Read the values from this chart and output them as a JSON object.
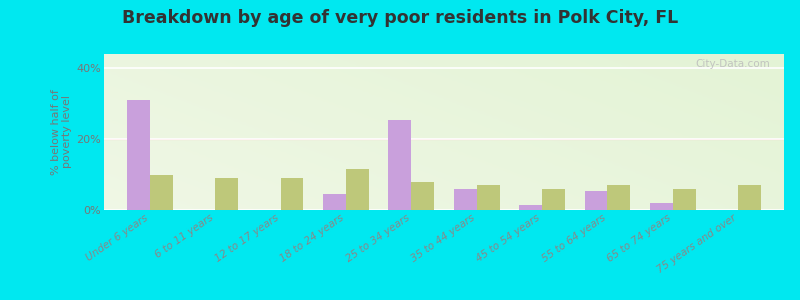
{
  "title": "Breakdown by age of very poor residents in Polk City, FL",
  "ylabel": "% below half of\npoverty level",
  "categories": [
    "Under 6 years",
    "6 to 11 years",
    "12 to 17 years",
    "18 to 24 years",
    "25 to 34 years",
    "35 to 44 years",
    "45 to 54 years",
    "55 to 64 years",
    "65 to 74 years",
    "75 years and over"
  ],
  "polk_city": [
    31.0,
    0.0,
    0.0,
    4.5,
    25.5,
    6.0,
    1.5,
    5.5,
    2.0,
    0.0
  ],
  "florida": [
    10.0,
    9.0,
    9.0,
    11.5,
    8.0,
    7.0,
    6.0,
    7.0,
    6.0,
    7.0
  ],
  "polk_color": "#c9a0dc",
  "florida_color": "#bec87a",
  "ylim": [
    0,
    44
  ],
  "yticks": [
    0,
    20,
    40
  ],
  "ytick_labels": [
    "0%",
    "20%",
    "40%"
  ],
  "outer_bg": "#00e8f0",
  "title_fontsize": 12.5,
  "bar_width": 0.35,
  "watermark": "City-Data.com"
}
